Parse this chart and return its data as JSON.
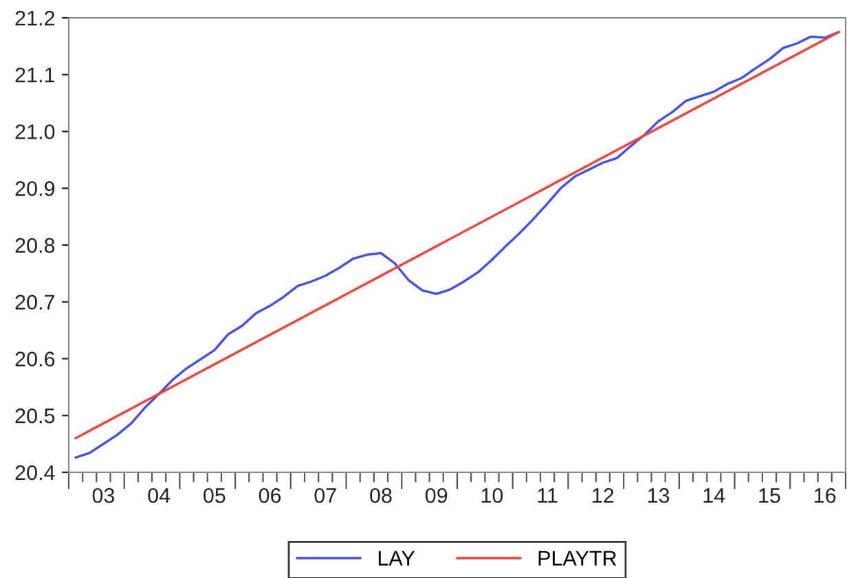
{
  "chart_data": {
    "type": "line",
    "categories": [
      null,
      null,
      "03",
      null,
      null,
      null,
      "04",
      null,
      null,
      null,
      "05",
      null,
      null,
      null,
      "06",
      null,
      null,
      null,
      "07",
      null,
      null,
      null,
      "08",
      null,
      null,
      null,
      "09",
      null,
      null,
      null,
      "10",
      null,
      null,
      null,
      "11",
      null,
      null,
      null,
      "12",
      null,
      null,
      null,
      "13",
      null,
      null,
      null,
      "14",
      null,
      null,
      null,
      "15",
      null,
      null,
      null,
      "16",
      null
    ],
    "ylim": [
      20.4,
      21.2
    ],
    "yticks": [
      {
        "value": 20.4,
        "label": "20.4"
      },
      {
        "value": 20.5,
        "label": "20.5"
      },
      {
        "value": 20.6,
        "label": "20.6"
      },
      {
        "value": 20.7,
        "label": "20.7"
      },
      {
        "value": 20.8,
        "label": "20.8"
      },
      {
        "value": 20.9,
        "label": "20.9"
      },
      {
        "value": 21.0,
        "label": "21.0"
      },
      {
        "value": 21.1,
        "label": "21.1"
      },
      {
        "value": 21.2,
        "label": "21.2"
      }
    ],
    "grid": false,
    "legend": "bottom",
    "marker": "none",
    "line_style": "solid",
    "series": [
      {
        "name": "LAY",
        "color": "#3b4cff",
        "values": [
          20.426,
          20.434,
          20.45,
          20.466,
          20.486,
          20.514,
          20.538,
          20.563,
          20.583,
          20.599,
          20.615,
          20.643,
          20.658,
          20.68,
          20.693,
          20.709,
          20.728,
          20.736,
          20.746,
          20.76,
          20.776,
          20.783,
          20.786,
          20.768,
          20.738,
          20.72,
          20.714,
          20.722,
          20.736,
          20.752,
          20.774,
          20.798,
          20.821,
          20.846,
          20.873,
          20.901,
          20.921,
          20.933,
          20.945,
          20.953,
          20.974,
          20.994,
          21.018,
          21.034,
          21.054,
          21.062,
          21.07,
          21.084,
          21.094,
          21.111,
          21.127,
          21.147,
          21.155,
          21.167,
          21.165,
          21.175
        ]
      },
      {
        "name": "PLAYTR",
        "color": "#ff3b30",
        "values": [
          20.46,
          20.473,
          20.486,
          20.499,
          20.512,
          20.525,
          20.538,
          20.551,
          20.564,
          20.577,
          20.59,
          20.603,
          20.616,
          20.629,
          20.642,
          20.655,
          20.668,
          20.681,
          20.694,
          20.707,
          20.72,
          20.733,
          20.746,
          20.759,
          20.772,
          20.785,
          20.798,
          20.811,
          20.824,
          20.837,
          20.85,
          20.863,
          20.876,
          20.889,
          20.902,
          20.915,
          20.928,
          20.941,
          20.954,
          20.967,
          20.98,
          20.993,
          21.006,
          21.019,
          21.032,
          21.045,
          21.058,
          21.071,
          21.084,
          21.097,
          21.11,
          21.123,
          21.136,
          21.149,
          21.162,
          21.175
        ]
      }
    ]
  }
}
